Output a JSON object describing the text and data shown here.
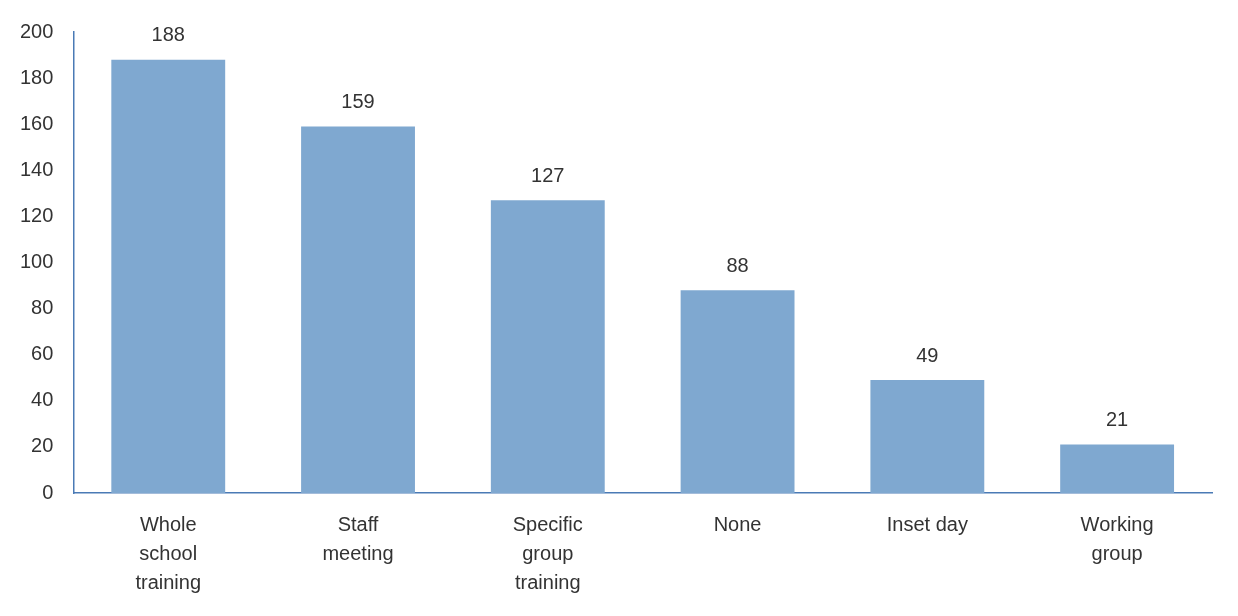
{
  "chart_data": {
    "type": "bar",
    "categories": [
      "Whole school training",
      "Staff meeting",
      "Specific group training",
      "None",
      "Inset day",
      "Working group"
    ],
    "values": [
      188,
      159,
      127,
      88,
      49,
      21
    ],
    "color": "#7fa8d0",
    "ylim": [
      0,
      200
    ],
    "yticks": [
      0,
      20,
      40,
      60,
      80,
      100,
      120,
      140,
      160,
      180,
      200
    ],
    "grid": false,
    "legend": false,
    "data_labels": true
  }
}
